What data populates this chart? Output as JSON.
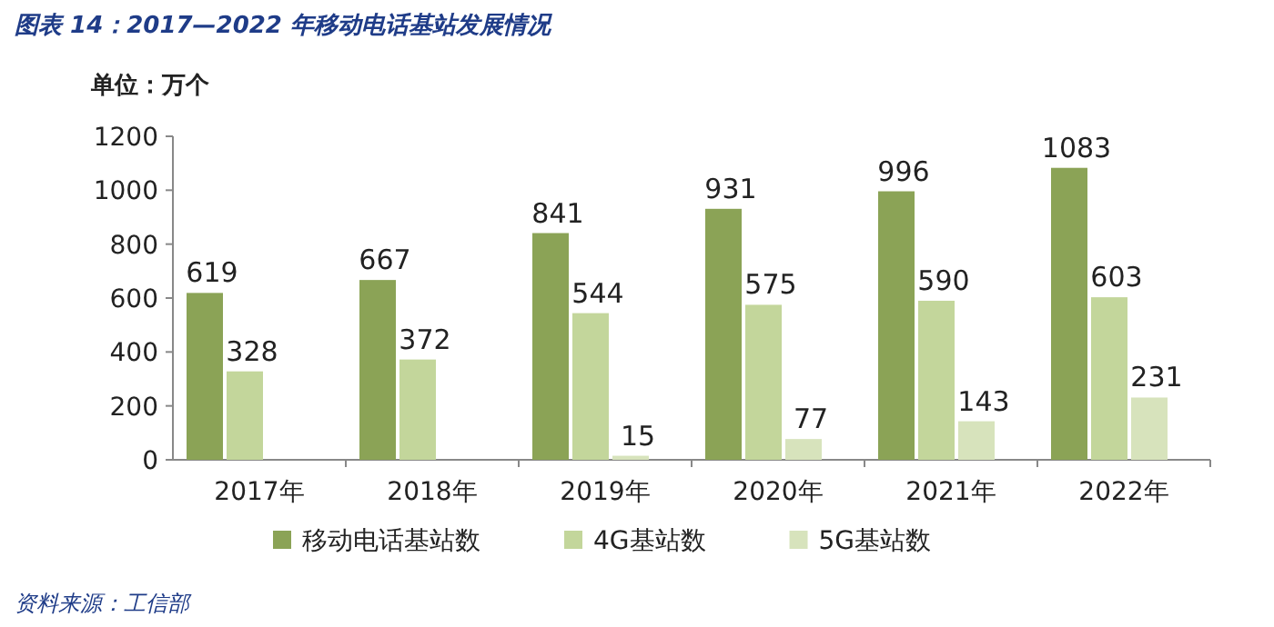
{
  "chart_data": {
    "type": "bar",
    "title": "图表 14：2017—2022 年移动电话基站发展情况",
    "ylabel": "单位：万个",
    "categories": [
      "2017年",
      "2018年",
      "2019年",
      "2020年",
      "2021年",
      "2022年"
    ],
    "series": [
      {
        "name": "移动电话基站数",
        "color": "#8ba356",
        "values": [
          619,
          667,
          841,
          931,
          996,
          1083
        ]
      },
      {
        "name": "4G基站数",
        "color": "#c3d69b",
        "values": [
          328,
          372,
          544,
          575,
          590,
          603
        ]
      },
      {
        "name": "5G基站数",
        "color": "#d7e3bc",
        "values": [
          null,
          null,
          15,
          77,
          143,
          231
        ]
      }
    ],
    "ylim": [
      0,
      1200
    ],
    "yticks": [
      0,
      200,
      400,
      600,
      800,
      1000,
      1200
    ],
    "data_labels": true,
    "legend": "bottom",
    "grid": false,
    "annotations": [
      "资料来源：工信部"
    ]
  }
}
